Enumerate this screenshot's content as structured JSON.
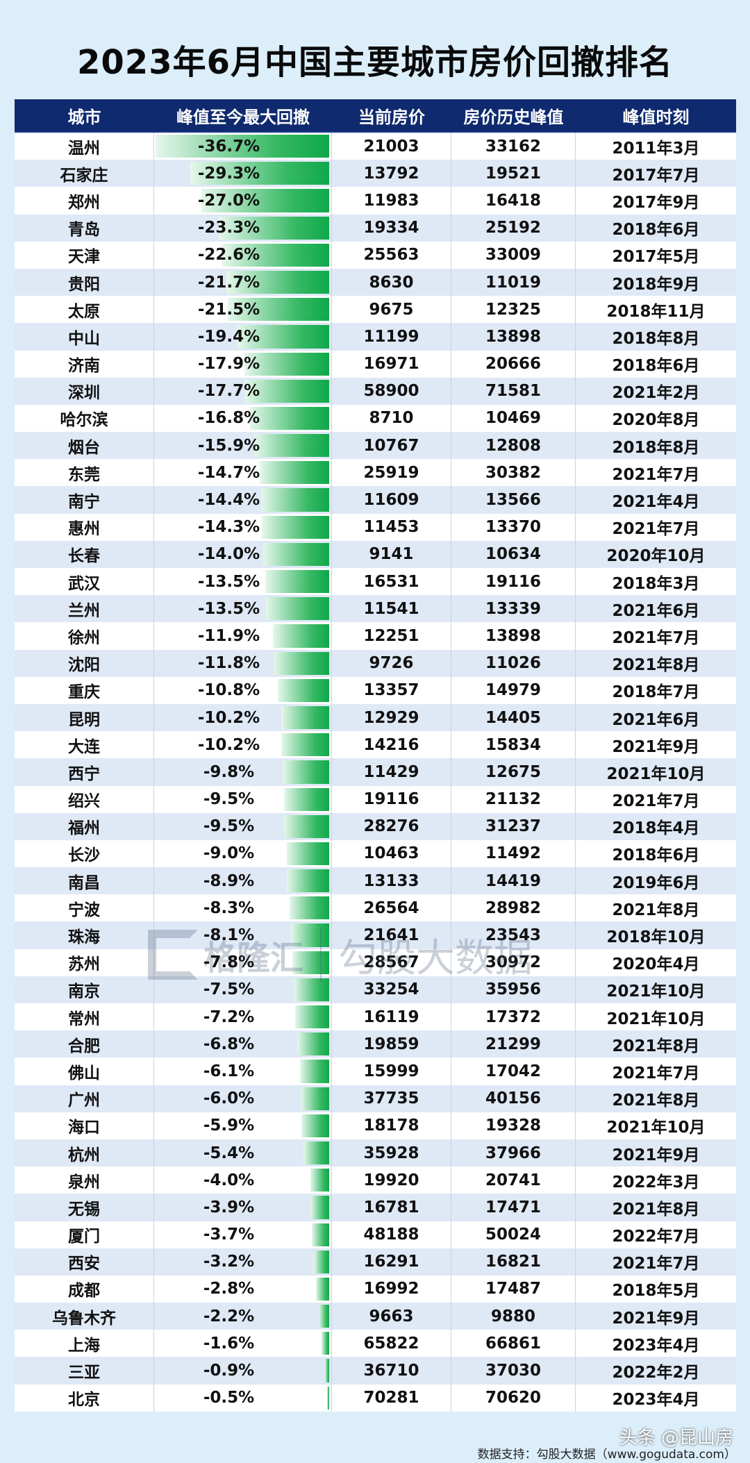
{
  "title": "2023年6月中国主要城市房价回撤排名",
  "header": {
    "city": "城市",
    "drawdown": "峰值至今最大回撤",
    "current_price": "当前房价",
    "peak_price": "房价历史峰值",
    "peak_time": "峰值时刻"
  },
  "rows": [
    {
      "city": "温州",
      "drawdown": "-36.7%",
      "current": "21003",
      "peak": "33162",
      "time": "2011年3月"
    },
    {
      "city": "石家庄",
      "drawdown": "-29.3%",
      "current": "13792",
      "peak": "19521",
      "time": "2017年7月"
    },
    {
      "city": "郑州",
      "drawdown": "-27.0%",
      "current": "11983",
      "peak": "16418",
      "time": "2017年9月"
    },
    {
      "city": "青岛",
      "drawdown": "-23.3%",
      "current": "19334",
      "peak": "25192",
      "time": "2018年6月"
    },
    {
      "city": "天津",
      "drawdown": "-22.6%",
      "current": "25563",
      "peak": "33009",
      "time": "2017年5月"
    },
    {
      "city": "贵阳",
      "drawdown": "-21.7%",
      "current": "8630",
      "peak": "11019",
      "time": "2018年9月"
    },
    {
      "city": "太原",
      "drawdown": "-21.5%",
      "current": "9675",
      "peak": "12325",
      "time": "2018年11月"
    },
    {
      "city": "中山",
      "drawdown": "-19.4%",
      "current": "11199",
      "peak": "13898",
      "time": "2018年8月"
    },
    {
      "city": "济南",
      "drawdown": "-17.9%",
      "current": "16971",
      "peak": "20666",
      "time": "2018年6月"
    },
    {
      "city": "深圳",
      "drawdown": "-17.7%",
      "current": "58900",
      "peak": "71581",
      "time": "2021年2月"
    },
    {
      "city": "哈尔滨",
      "drawdown": "-16.8%",
      "current": "8710",
      "peak": "10469",
      "time": "2020年8月"
    },
    {
      "city": "烟台",
      "drawdown": "-15.9%",
      "current": "10767",
      "peak": "12808",
      "time": "2018年8月"
    },
    {
      "city": "东莞",
      "drawdown": "-14.7%",
      "current": "25919",
      "peak": "30382",
      "time": "2021年7月"
    },
    {
      "city": "南宁",
      "drawdown": "-14.4%",
      "current": "11609",
      "peak": "13566",
      "time": "2021年4月"
    },
    {
      "city": "惠州",
      "drawdown": "-14.3%",
      "current": "11453",
      "peak": "13370",
      "time": "2021年7月"
    },
    {
      "city": "长春",
      "drawdown": "-14.0%",
      "current": "9141",
      "peak": "10634",
      "time": "2020年10月"
    },
    {
      "city": "武汉",
      "drawdown": "-13.5%",
      "current": "16531",
      "peak": "19116",
      "time": "2018年3月"
    },
    {
      "city": "兰州",
      "drawdown": "-13.5%",
      "current": "11541",
      "peak": "13339",
      "time": "2021年6月"
    },
    {
      "city": "徐州",
      "drawdown": "-11.9%",
      "current": "12251",
      "peak": "13898",
      "time": "2021年7月"
    },
    {
      "city": "沈阳",
      "drawdown": "-11.8%",
      "current": "9726",
      "peak": "11026",
      "time": "2021年8月"
    },
    {
      "city": "重庆",
      "drawdown": "-10.8%",
      "current": "13357",
      "peak": "14979",
      "time": "2018年7月"
    },
    {
      "city": "昆明",
      "drawdown": "-10.2%",
      "current": "12929",
      "peak": "14405",
      "time": "2021年6月"
    },
    {
      "city": "大连",
      "drawdown": "-10.2%",
      "current": "14216",
      "peak": "15834",
      "time": "2021年9月"
    },
    {
      "city": "西宁",
      "drawdown": "-9.8%",
      "current": "11429",
      "peak": "12675",
      "time": "2021年10月"
    },
    {
      "city": "绍兴",
      "drawdown": "-9.5%",
      "current": "19116",
      "peak": "21132",
      "time": "2021年7月"
    },
    {
      "city": "福州",
      "drawdown": "-9.5%",
      "current": "28276",
      "peak": "31237",
      "time": "2018年4月"
    },
    {
      "city": "长沙",
      "drawdown": "-9.0%",
      "current": "10463",
      "peak": "11492",
      "time": "2018年6月"
    },
    {
      "city": "南昌",
      "drawdown": "-8.9%",
      "current": "13133",
      "peak": "14419",
      "time": "2019年6月"
    },
    {
      "city": "宁波",
      "drawdown": "-8.3%",
      "current": "26564",
      "peak": "28982",
      "time": "2021年8月"
    },
    {
      "city": "珠海",
      "drawdown": "-8.1%",
      "current": "21641",
      "peak": "23543",
      "time": "2018年10月"
    },
    {
      "city": "苏州",
      "drawdown": "-7.8%",
      "current": "28567",
      "peak": "30972",
      "time": "2020年4月"
    },
    {
      "city": "南京",
      "drawdown": "-7.5%",
      "current": "33254",
      "peak": "35956",
      "time": "2021年10月"
    },
    {
      "city": "常州",
      "drawdown": "-7.2%",
      "current": "16119",
      "peak": "17372",
      "time": "2021年10月"
    },
    {
      "city": "合肥",
      "drawdown": "-6.8%",
      "current": "19859",
      "peak": "21299",
      "time": "2021年8月"
    },
    {
      "city": "佛山",
      "drawdown": "-6.1%",
      "current": "15999",
      "peak": "17042",
      "time": "2021年7月"
    },
    {
      "city": "广州",
      "drawdown": "-6.0%",
      "current": "37735",
      "peak": "40156",
      "time": "2021年8月"
    },
    {
      "city": "海口",
      "drawdown": "-5.9%",
      "current": "18178",
      "peak": "19328",
      "time": "2021年10月"
    },
    {
      "city": "杭州",
      "drawdown": "-5.4%",
      "current": "35928",
      "peak": "37966",
      "time": "2021年9月"
    },
    {
      "city": "泉州",
      "drawdown": "-4.0%",
      "current": "19920",
      "peak": "20741",
      "time": "2022年3月"
    },
    {
      "city": "无锡",
      "drawdown": "-3.9%",
      "current": "16781",
      "peak": "17471",
      "time": "2021年8月"
    },
    {
      "city": "厦门",
      "drawdown": "-3.7%",
      "current": "48188",
      "peak": "50024",
      "time": "2022年7月"
    },
    {
      "city": "西安",
      "drawdown": "-3.2%",
      "current": "16291",
      "peak": "16821",
      "time": "2021年7月"
    },
    {
      "city": "成都",
      "drawdown": "-2.8%",
      "current": "16992",
      "peak": "17487",
      "time": "2018年5月"
    },
    {
      "city": "乌鲁木齐",
      "drawdown": "-2.2%",
      "current": "9663",
      "peak": "9880",
      "time": "2021年9月"
    },
    {
      "city": "上海",
      "drawdown": "-1.6%",
      "current": "65822",
      "peak": "66861",
      "time": "2023年4月"
    },
    {
      "city": "三亚",
      "drawdown": "-0.9%",
      "current": "36710",
      "peak": "37030",
      "time": "2022年2月"
    },
    {
      "city": "北京",
      "drawdown": "-0.5%",
      "current": "70281",
      "peak": "70620",
      "time": "2023年4月"
    }
  ],
  "watermark": {
    "brand1": "格隆汇",
    "brand1_url": "gelonghui.com",
    "brand2": "勾股大数据",
    "brand2_url": "www.gogudata.com"
  },
  "footer": {
    "source": "数据支持：勾股大数据（www.gogudata.com）",
    "badge": "头条 @昆山房"
  },
  "colors": {
    "header_bg": "#0f2a6e",
    "bar_green": "#0fa84a",
    "row_alt": "#dfe8f5",
    "page_bg": "#dbeefa"
  },
  "chart_data": {
    "type": "table",
    "title": "2023年6月中国主要城市房价回撤排名",
    "columns": [
      "城市",
      "峰值至今最大回撤",
      "当前房价",
      "房价历史峰值",
      "峰值时刻"
    ],
    "categories": [
      "温州",
      "石家庄",
      "郑州",
      "青岛",
      "天津",
      "贵阳",
      "太原",
      "中山",
      "济南",
      "深圳",
      "哈尔滨",
      "烟台",
      "东莞",
      "南宁",
      "惠州",
      "长春",
      "武汉",
      "兰州",
      "徐州",
      "沈阳",
      "重庆",
      "昆明",
      "大连",
      "西宁",
      "绍兴",
      "福州",
      "长沙",
      "南昌",
      "宁波",
      "珠海",
      "苏州",
      "南京",
      "常州",
      "合肥",
      "佛山",
      "广州",
      "海口",
      "杭州",
      "泉州",
      "无锡",
      "厦门",
      "西安",
      "成都",
      "乌鲁木齐",
      "上海",
      "三亚",
      "北京"
    ],
    "series": [
      {
        "name": "峰值至今最大回撤(%)",
        "values": [
          -36.7,
          -29.3,
          -27.0,
          -23.3,
          -22.6,
          -21.7,
          -21.5,
          -19.4,
          -17.9,
          -17.7,
          -16.8,
          -15.9,
          -14.7,
          -14.4,
          -14.3,
          -14.0,
          -13.5,
          -13.5,
          -11.9,
          -11.8,
          -10.8,
          -10.2,
          -10.2,
          -9.8,
          -9.5,
          -9.5,
          -9.0,
          -8.9,
          -8.3,
          -8.1,
          -7.8,
          -7.5,
          -7.2,
          -6.8,
          -6.1,
          -6.0,
          -5.9,
          -5.4,
          -4.0,
          -3.9,
          -3.7,
          -3.2,
          -2.8,
          -2.2,
          -1.6,
          -0.9,
          -0.5
        ]
      },
      {
        "name": "当前房价",
        "values": [
          21003,
          13792,
          11983,
          19334,
          25563,
          8630,
          9675,
          11199,
          16971,
          58900,
          8710,
          10767,
          25919,
          11609,
          11453,
          9141,
          16531,
          11541,
          12251,
          9726,
          13357,
          12929,
          14216,
          11429,
          19116,
          28276,
          10463,
          13133,
          26564,
          21641,
          28567,
          33254,
          16119,
          19859,
          15999,
          37735,
          18178,
          35928,
          19920,
          16781,
          48188,
          16291,
          16992,
          9663,
          65822,
          36710,
          70281
        ]
      },
      {
        "name": "房价历史峰值",
        "values": [
          33162,
          19521,
          16418,
          25192,
          33009,
          11019,
          12325,
          13898,
          20666,
          71581,
          10469,
          12808,
          30382,
          13566,
          13370,
          10634,
          19116,
          13339,
          13898,
          11026,
          14979,
          14405,
          15834,
          12675,
          21132,
          31237,
          11492,
          14419,
          28982,
          23543,
          30972,
          35956,
          17372,
          21299,
          17042,
          40156,
          19328,
          37966,
          20741,
          17471,
          50024,
          16821,
          17487,
          9880,
          66861,
          37030,
          70620
        ]
      }
    ],
    "peak_time": [
      "2011年3月",
      "2017年7月",
      "2017年9月",
      "2018年6月",
      "2017年5月",
      "2018年9月",
      "2018年11月",
      "2018年8月",
      "2018年6月",
      "2021年2月",
      "2020年8月",
      "2018年8月",
      "2021年7月",
      "2021年4月",
      "2021年7月",
      "2020年10月",
      "2018年3月",
      "2021年6月",
      "2021年7月",
      "2021年8月",
      "2018年7月",
      "2021年6月",
      "2021年9月",
      "2021年10月",
      "2021年7月",
      "2018年4月",
      "2018年6月",
      "2019年6月",
      "2021年8月",
      "2018年10月",
      "2020年4月",
      "2021年10月",
      "2021年10月",
      "2021年8月",
      "2021年7月",
      "2021年8月",
      "2021年10月",
      "2021年9月",
      "2022年3月",
      "2021年8月",
      "2022年7月",
      "2021年7月",
      "2018年5月",
      "2021年9月",
      "2023年4月",
      "2022年2月",
      "2023年4月"
    ],
    "source": "数据支持：勾股大数据（www.gogudata.com）"
  }
}
